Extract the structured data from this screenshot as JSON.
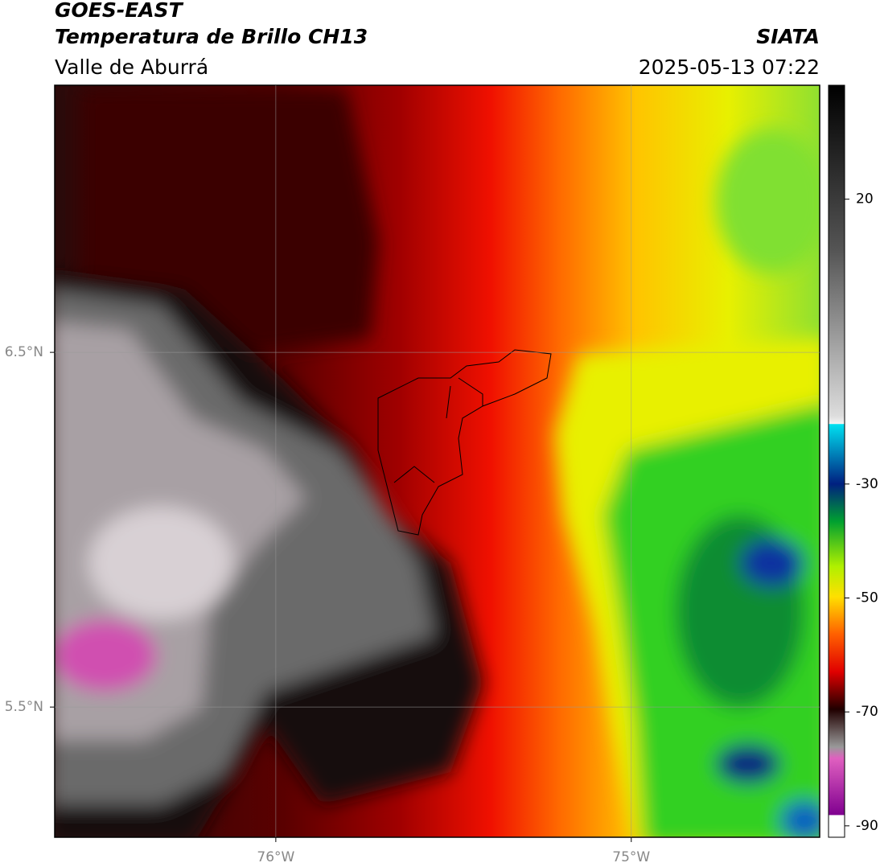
{
  "header": {
    "title": "GOES-EAST",
    "subtitle": "Temperatura de Brillo CH13",
    "region": "Valle de Aburrá",
    "source": "SIATA",
    "datetime": "2025-05-13 07:22"
  },
  "map": {
    "xlim": [
      -76.622,
      -74.47
    ],
    "ylim": [
      5.133,
      7.253
    ],
    "xticks": [
      {
        "value": -76,
        "label": "76°W"
      },
      {
        "value": -75,
        "label": "75°W"
      }
    ],
    "yticks": [
      {
        "value": 6.5,
        "label": "6.5°N"
      },
      {
        "value": 5.5,
        "label": "5.5°N"
      }
    ],
    "grid": true
  },
  "colorbar": {
    "lim": [
      -92,
      40
    ],
    "ticks": [
      20,
      -30,
      -50,
      -70,
      -90
    ]
  }
}
